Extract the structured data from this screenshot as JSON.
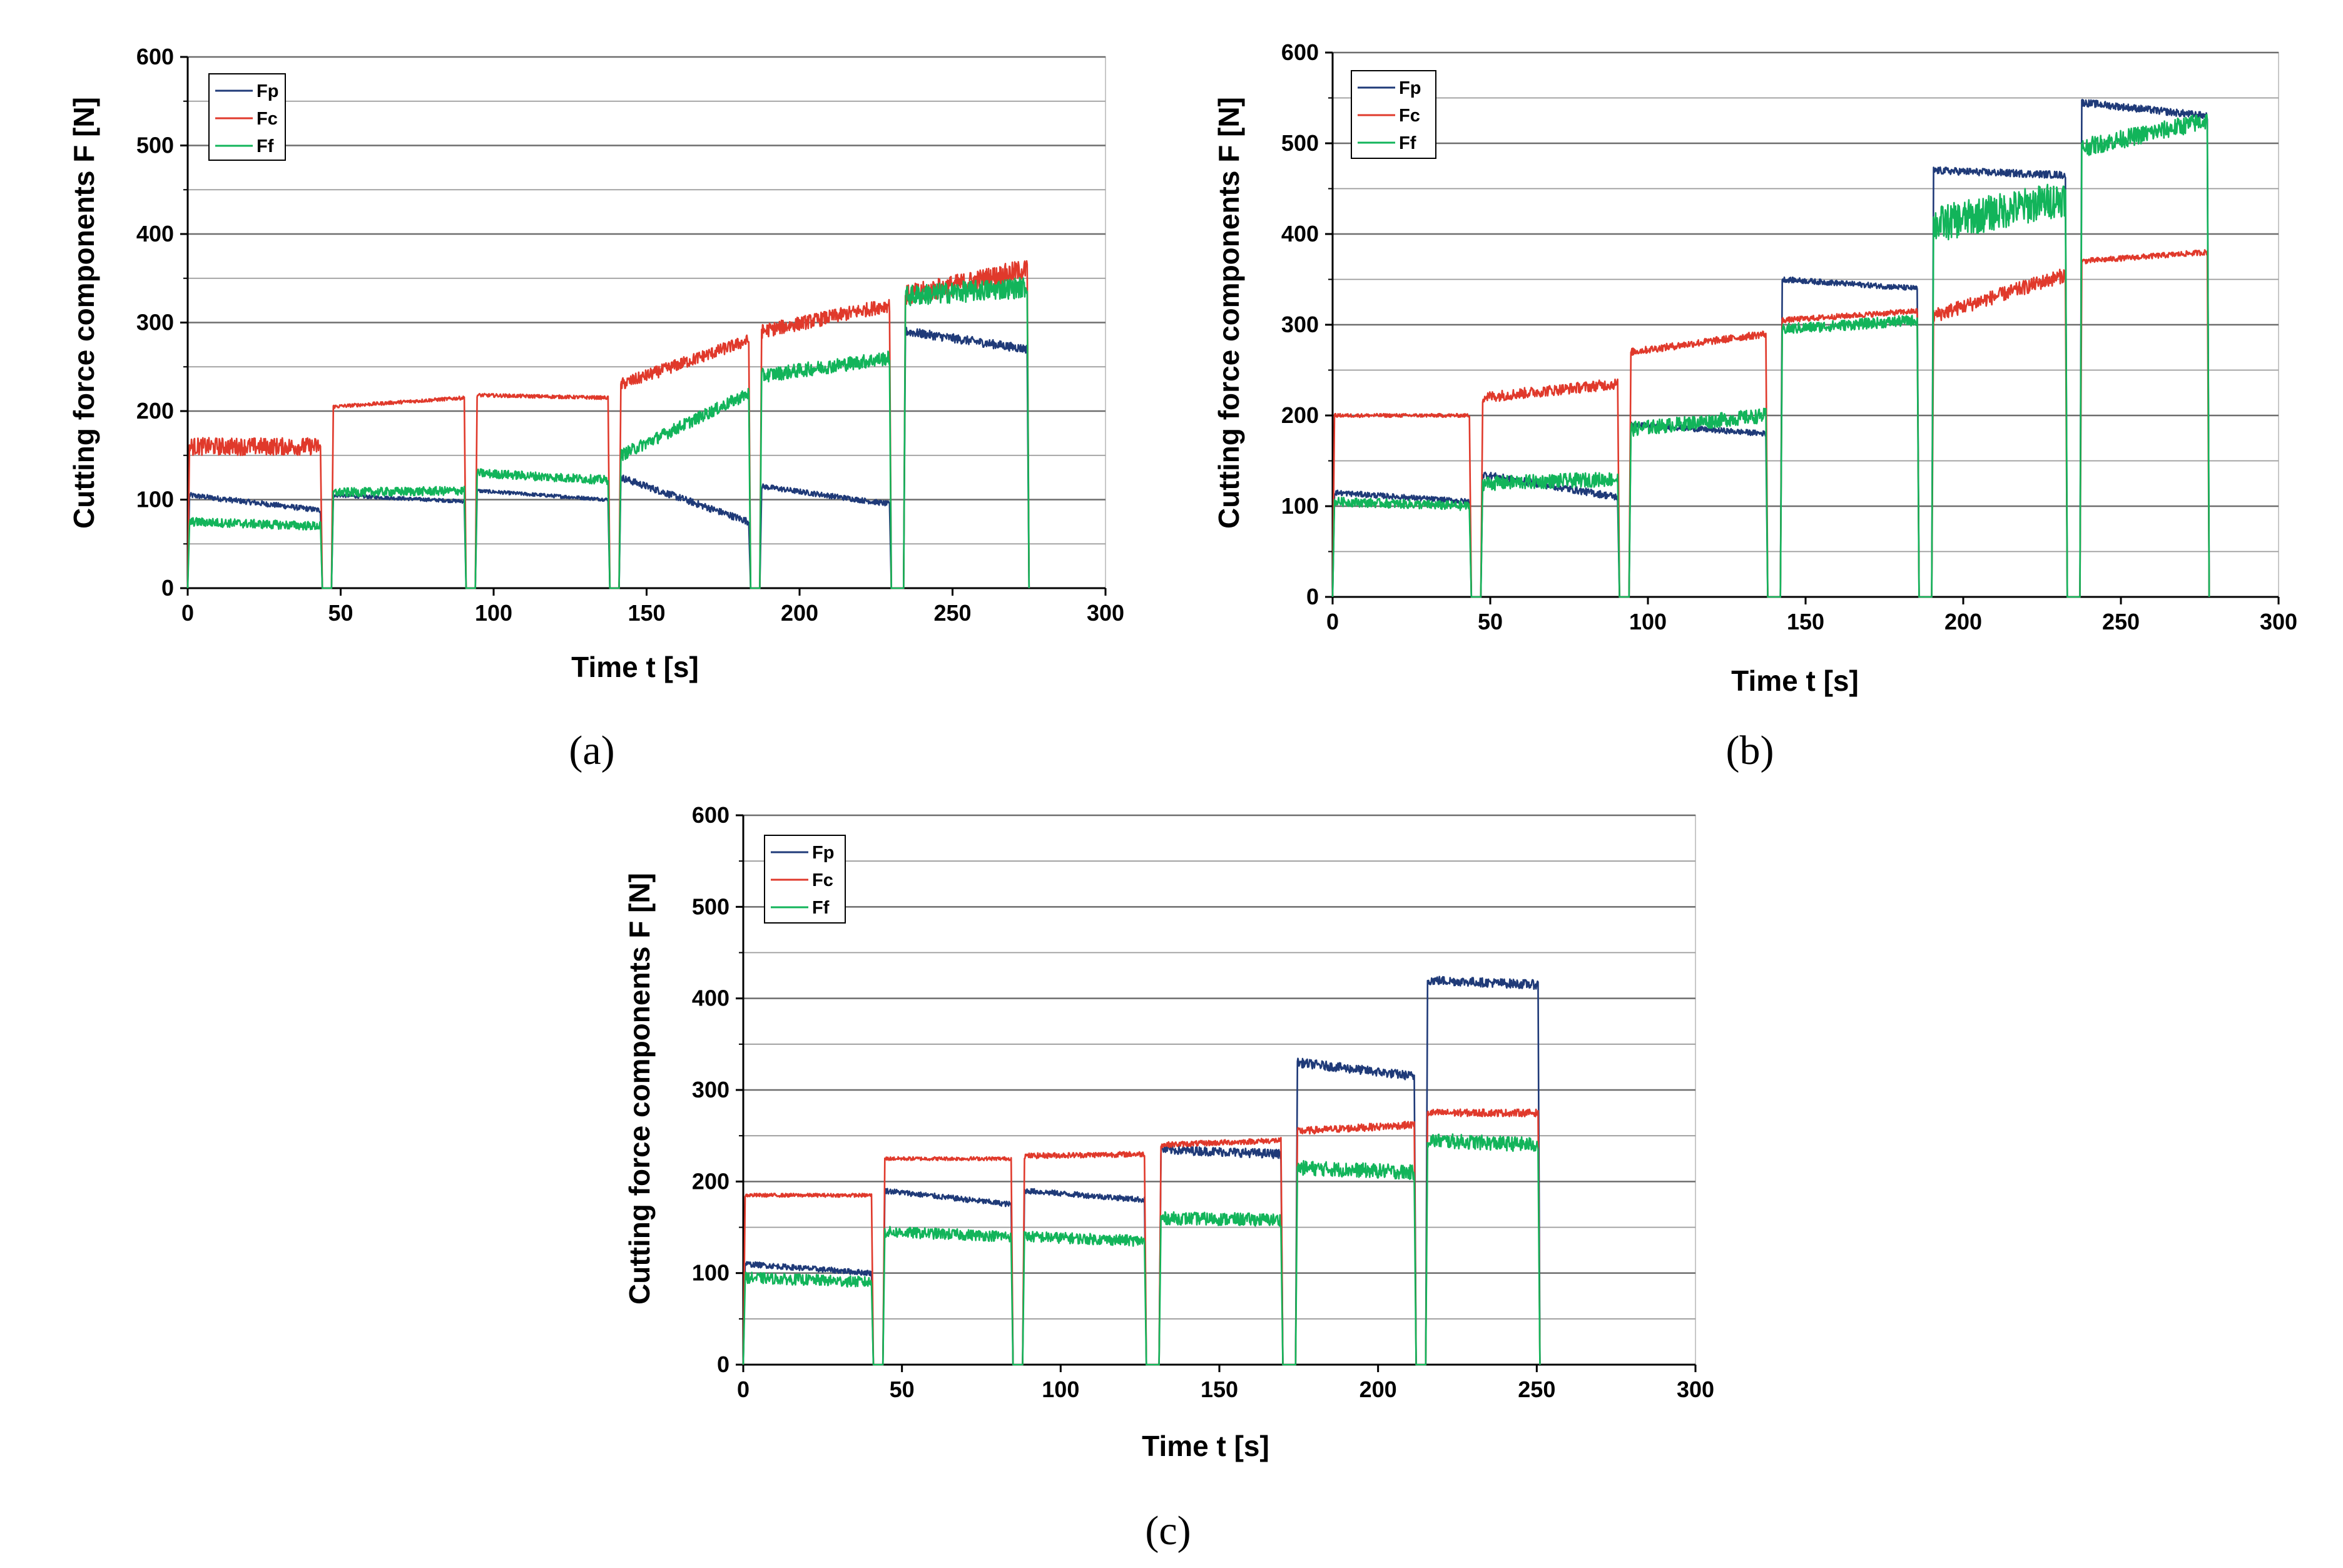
{
  "figure": {
    "captions": [
      "(a)",
      "(b)",
      "(c)"
    ]
  },
  "colors": {
    "Fp": "#1f3a78",
    "Fc": "#e0392b",
    "Ff": "#12b45a",
    "grid": "#7f7f7f"
  },
  "chart_data": [
    {
      "type": "line",
      "panel": "a",
      "xlabel": "Time t [s]",
      "ylabel": "Cutting force components F [N]",
      "xlim": [
        0,
        300
      ],
      "ylim": [
        0,
        600
      ],
      "xticks": [
        0,
        50,
        100,
        150,
        200,
        250,
        300
      ],
      "yticks": [
        0,
        100,
        200,
        300,
        400,
        500,
        600
      ],
      "legend": [
        "Fp",
        "Fc",
        "Ff"
      ],
      "segments": [
        {
          "t0": 0,
          "t1": 44,
          "Fp": [
            105,
            88
          ],
          "Fc": [
            160,
            160
          ],
          "Ff": [
            75,
            70
          ],
          "noise": {
            "Fp": 3,
            "Fc": 10,
            "Ff": 5
          }
        },
        {
          "t0": 47,
          "t1": 91,
          "Fp": [
            105,
            98
          ],
          "Fc": [
            205,
            215
          ],
          "Ff": [
            108,
            110
          ],
          "noise": {
            "Fp": 2,
            "Fc": 2,
            "Ff": 5
          }
        },
        {
          "t0": 94,
          "t1": 138,
          "Fp": [
            110,
            100
          ],
          "Fc": [
            218,
            215
          ],
          "Ff": [
            130,
            122
          ],
          "noise": {
            "Fp": 2,
            "Fc": 2,
            "Ff": 5
          }
        },
        {
          "t0": 141,
          "t1": 184,
          "Fp": [
            125,
            75
          ],
          "Fc": [
            230,
            280
          ],
          "Ff": [
            150,
            220
          ],
          "noise": {
            "Fp": 4,
            "Fc": 7,
            "Ff": 7
          }
        },
        {
          "t0": 187,
          "t1": 230,
          "Fp": [
            115,
            95
          ],
          "Fc": [
            290,
            320
          ],
          "Ff": [
            240,
            260
          ],
          "noise": {
            "Fp": 3,
            "Fc": 8,
            "Ff": 8
          }
        },
        {
          "t0": 234,
          "t1": 275,
          "Fp": [
            290,
            270
          ],
          "Fc": [
            330,
            360
          ],
          "Ff": [
            330,
            340
          ],
          "noise": {
            "Fp": 5,
            "Fc": 12,
            "Ff": 12
          }
        }
      ]
    },
    {
      "type": "line",
      "panel": "b",
      "xlabel": "Time t [s]",
      "ylabel": "Cutting force components F [N]",
      "xlim": [
        0,
        300
      ],
      "ylim": [
        0,
        600
      ],
      "xticks": [
        0,
        50,
        100,
        150,
        200,
        250,
        300
      ],
      "yticks": [
        0,
        100,
        200,
        300,
        400,
        500,
        600
      ],
      "legend": [
        "Fp",
        "Fc",
        "Ff"
      ],
      "segments": [
        {
          "t0": 0,
          "t1": 44,
          "Fp": [
            115,
            105
          ],
          "Fc": [
            200,
            200
          ],
          "Ff": [
            105,
            100
          ],
          "noise": {
            "Fp": 3,
            "Fc": 2,
            "Ff": 5
          }
        },
        {
          "t0": 47,
          "t1": 91,
          "Fp": [
            135,
            110
          ],
          "Fc": [
            220,
            235
          ],
          "Ff": [
            125,
            130
          ],
          "noise": {
            "Fp": 4,
            "Fc": 6,
            "Ff": 8
          }
        },
        {
          "t0": 94,
          "t1": 138,
          "Fp": [
            190,
            180
          ],
          "Fc": [
            270,
            290
          ],
          "Ff": [
            185,
            200
          ],
          "noise": {
            "Fp": 3,
            "Fc": 4,
            "Ff": 8
          }
        },
        {
          "t0": 142,
          "t1": 186,
          "Fp": [
            350,
            340
          ],
          "Fc": [
            305,
            315
          ],
          "Ff": [
            295,
            305
          ],
          "noise": {
            "Fp": 3,
            "Fc": 3,
            "Ff": 6
          }
        },
        {
          "t0": 190,
          "t1": 233,
          "Fp": [
            470,
            465
          ],
          "Fc": [
            310,
            355
          ],
          "Ff": [
            410,
            440
          ],
          "noise": {
            "Fp": 4,
            "Fc": 8,
            "Ff": 20
          }
        },
        {
          "t0": 237,
          "t1": 278,
          "Fp": [
            545,
            530
          ],
          "Fc": [
            370,
            380
          ],
          "Ff": [
            495,
            525
          ],
          "noise": {
            "Fp": 4,
            "Fc": 3,
            "Ff": 10
          }
        }
      ]
    },
    {
      "type": "line",
      "panel": "c",
      "xlabel": "Time t [s]",
      "ylabel": "Cutting force components F [N]",
      "xlim": [
        0,
        300
      ],
      "ylim": [
        0,
        600
      ],
      "xticks": [
        0,
        50,
        100,
        150,
        200,
        250,
        300
      ],
      "yticks": [
        0,
        100,
        200,
        300,
        400,
        500,
        600
      ],
      "legend": [
        "Fp",
        "Fc",
        "Ff"
      ],
      "segments": [
        {
          "t0": 0,
          "t1": 41,
          "Fp": [
            110,
            100
          ],
          "Fc": [
            185,
            185
          ],
          "Ff": [
            95,
            90
          ],
          "noise": {
            "Fp": 3,
            "Fc": 2,
            "Ff": 6
          }
        },
        {
          "t0": 44,
          "t1": 85,
          "Fp": [
            190,
            175
          ],
          "Fc": [
            225,
            225
          ],
          "Ff": [
            145,
            140
          ],
          "noise": {
            "Fp": 3,
            "Fc": 2,
            "Ff": 6
          }
        },
        {
          "t0": 88,
          "t1": 127,
          "Fp": [
            190,
            180
          ],
          "Fc": [
            228,
            230
          ],
          "Ff": [
            140,
            135
          ],
          "noise": {
            "Fp": 3,
            "Fc": 3,
            "Ff": 6
          }
        },
        {
          "t0": 131,
          "t1": 170,
          "Fp": [
            235,
            230
          ],
          "Fc": [
            240,
            245
          ],
          "Ff": [
            160,
            158
          ],
          "noise": {
            "Fp": 5,
            "Fc": 3,
            "Ff": 7
          }
        },
        {
          "t0": 174,
          "t1": 212,
          "Fp": [
            330,
            315
          ],
          "Fc": [
            255,
            262
          ],
          "Ff": [
            215,
            210
          ],
          "noise": {
            "Fp": 5,
            "Fc": 4,
            "Ff": 8
          }
        },
        {
          "t0": 215,
          "t1": 251,
          "Fp": [
            420,
            415
          ],
          "Fc": [
            275,
            275
          ],
          "Ff": [
            245,
            240
          ],
          "noise": {
            "Fp": 5,
            "Fc": 4,
            "Ff": 8
          }
        }
      ]
    }
  ]
}
